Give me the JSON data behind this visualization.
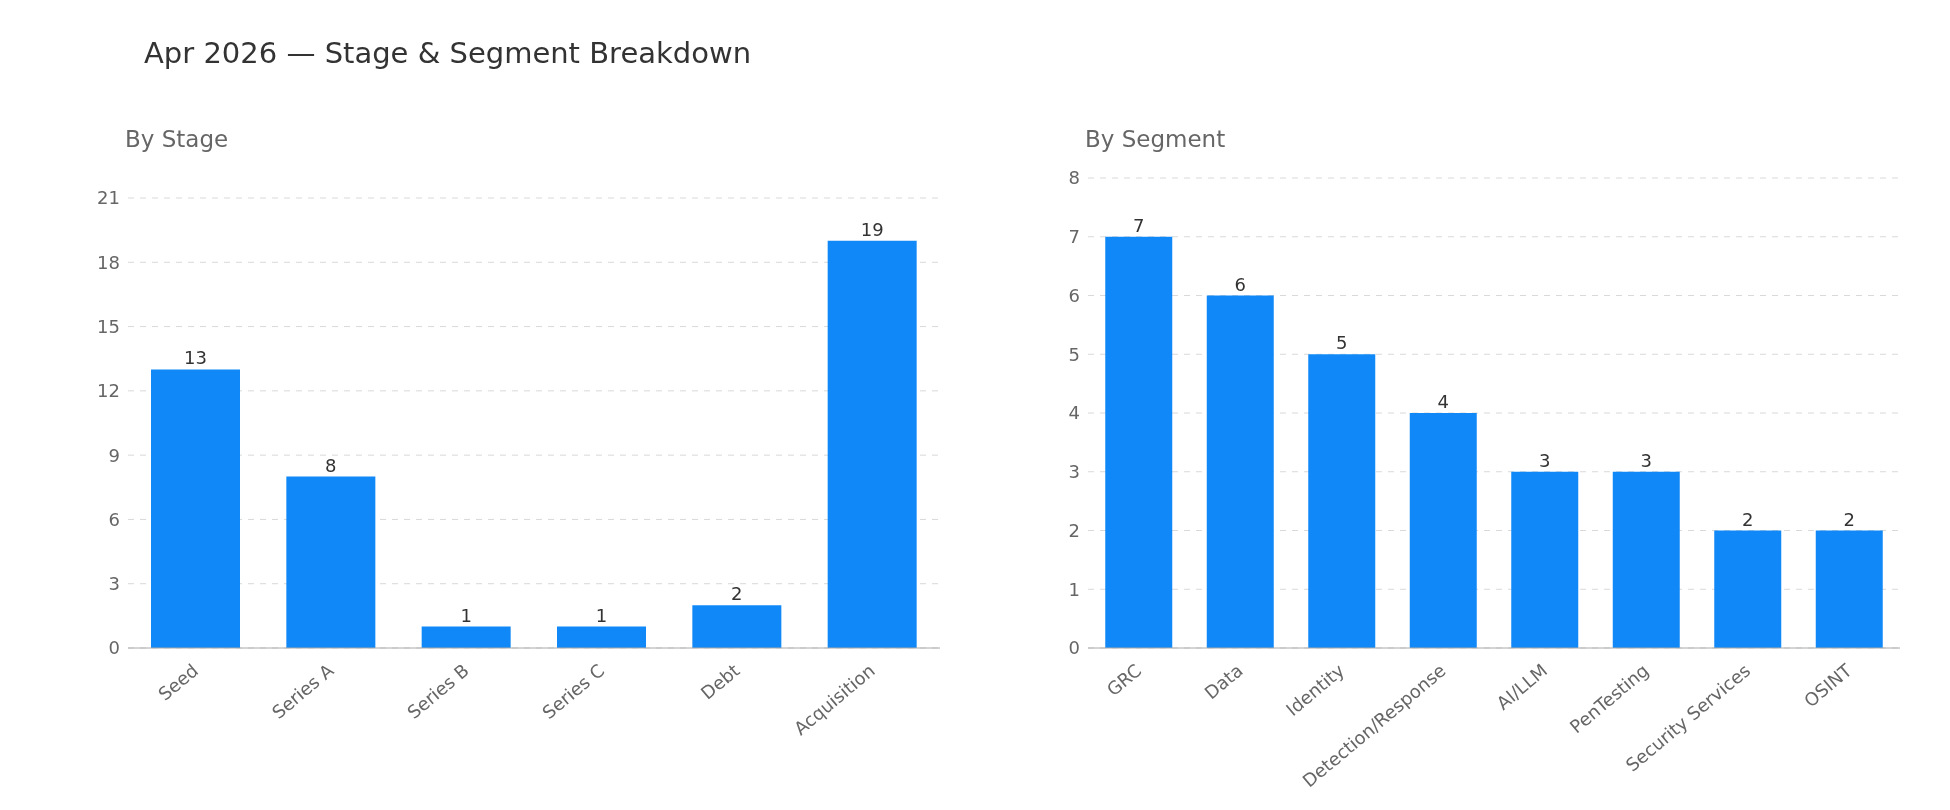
{
  "chart_data": [
    {
      "type": "bar",
      "title": "Apr 2026 — Stage & Segment Breakdown",
      "subtitle": "By Stage",
      "categories": [
        "Seed",
        "Series A",
        "Series B",
        "Series C",
        "Debt",
        "Acquisition"
      ],
      "values": [
        13,
        8,
        1,
        1,
        2,
        19
      ],
      "color": "#1188f7",
      "ylim": [
        0,
        21
      ],
      "yticks": [
        0,
        3,
        6,
        9,
        12,
        15,
        18,
        21
      ],
      "grid": "y",
      "data_labels": true,
      "legend": false
    },
    {
      "type": "bar",
      "subtitle": "By Segment",
      "categories": [
        "GRC",
        "Data",
        "Identity",
        "Detection/Response",
        "AI/LLM",
        "PenTesting",
        "Security Services",
        "OSINT"
      ],
      "values": [
        7,
        6,
        5,
        4,
        3,
        3,
        2,
        2
      ],
      "color": "#1188f7",
      "ylim": [
        0,
        8
      ],
      "yticks": [
        0,
        1,
        2,
        3,
        4,
        5,
        6,
        7,
        8
      ],
      "grid": "y",
      "data_labels": true,
      "legend": false
    }
  ]
}
